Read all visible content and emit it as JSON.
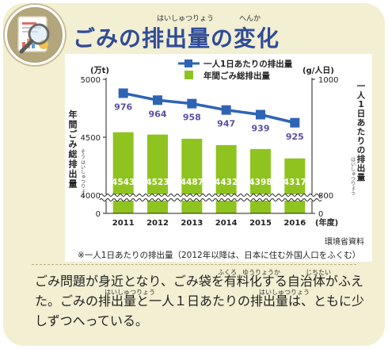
{
  "title": {
    "text": "ごみの排出量の変化",
    "ruby_left": "はいしゅつりょう",
    "ruby_right": "へんか"
  },
  "colors": {
    "bar": "#8fc31f",
    "line": "#2e64b5",
    "line_label": "#5b4fa2",
    "title": "#2f4b98",
    "panel": "#f2efd2"
  },
  "chart_data": {
    "type": "bar",
    "categories": [
      "2011",
      "2012",
      "2013",
      "2014",
      "2015",
      "2016"
    ],
    "xlabel_suffix": "(年度)",
    "left_unit": "(万t)",
    "right_unit": "(g/人日)",
    "left_axis_title": [
      "年",
      "間",
      "ご",
      "み",
      "総",
      "排",
      "出",
      "量"
    ],
    "left_axis_ruby": "そう はいしゅつりょう",
    "right_axis_title": [
      "一",
      "人",
      "1",
      "日",
      "あ",
      "た",
      "り",
      "の",
      "排",
      "出",
      "量"
    ],
    "right_axis_ruby": "はいしゅつりょう",
    "left_ticks": [
      "0",
      "4000",
      "4500",
      "5000"
    ],
    "right_ticks": [
      "0",
      "800",
      "1000"
    ],
    "ylim_left_break": [
      4000,
      5000
    ],
    "ylim_right_break": [
      800,
      1000
    ],
    "series": [
      {
        "name": "年間ごみ総排出量",
        "type": "bar",
        "axis": "left",
        "values": [
          4543,
          4523,
          4487,
          4432,
          4398,
          4317
        ]
      },
      {
        "name": "一人1日あたりの排出量",
        "type": "line",
        "axis": "right",
        "values": [
          976,
          964,
          958,
          947,
          939,
          925
        ]
      }
    ],
    "axis_break": true,
    "legend_position": "top"
  },
  "source": "環境省資料",
  "footnote": "※一人1日あたりの排出量（2012年以降は、日本に住む外国人口をふくむ）",
  "description": {
    "line1": "ごみ問題が身近となり、ごみ袋を有料化する自治体がふえ",
    "line2": "た。ごみの排出量と一人１日あたりの排出量は、ともに少",
    "line3": "しずつへっている。",
    "ruby": [
      "ふくろ",
      "ゆうりょうか",
      "じちたい",
      "はいしゅつりょう",
      "はいしゅつりょう"
    ]
  }
}
